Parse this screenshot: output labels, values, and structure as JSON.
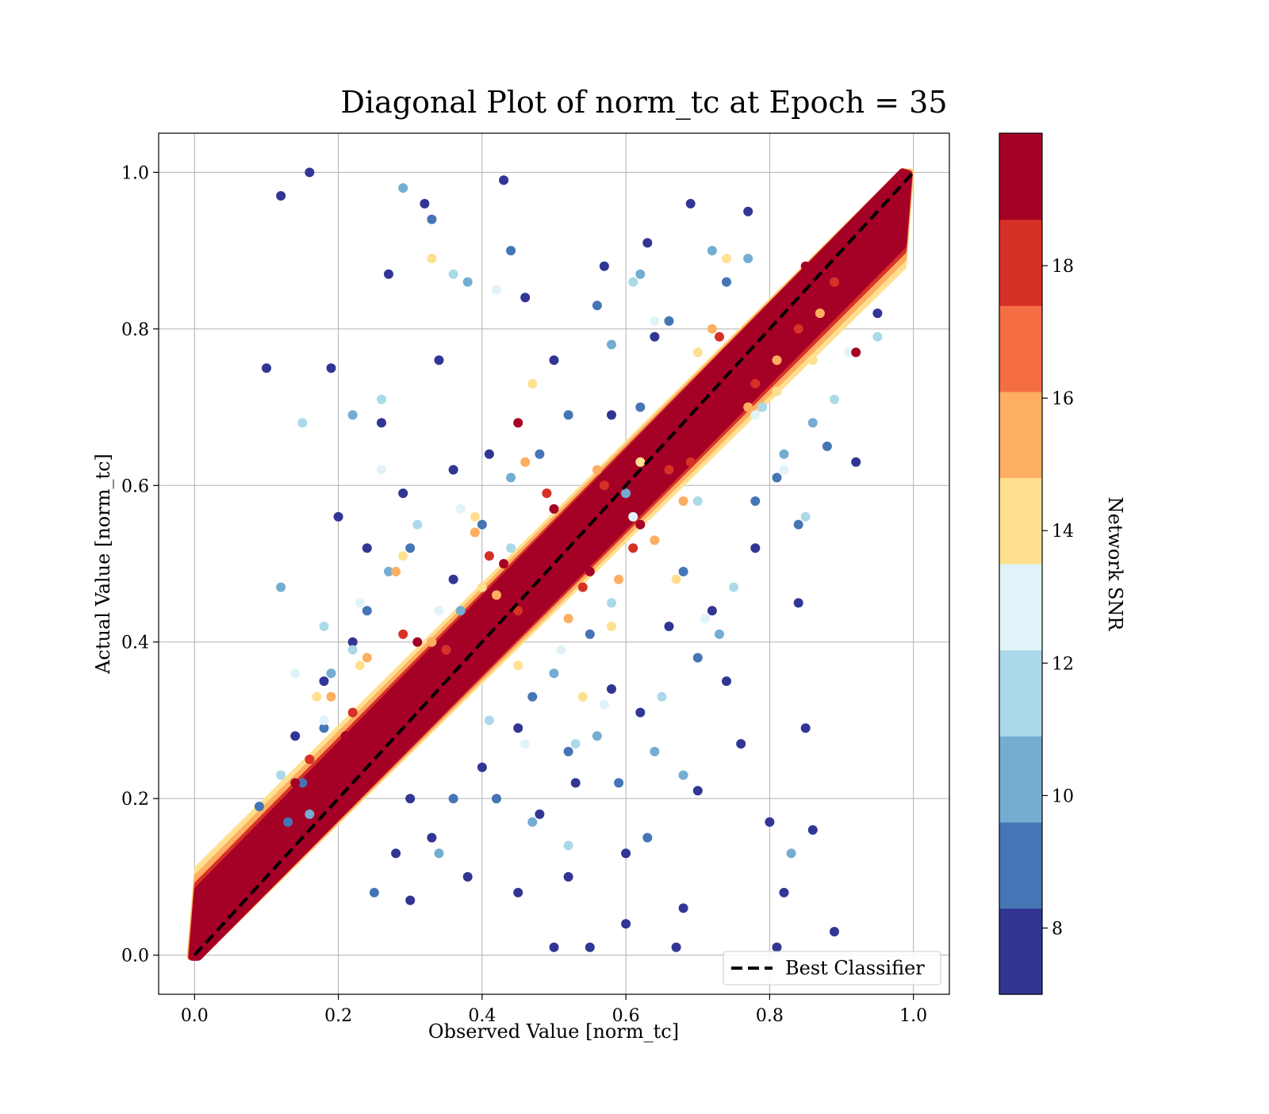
{
  "chart_data": {
    "type": "scatter",
    "title": "Diagonal Plot of norm_tc at Epoch = 35",
    "xlabel": "Observed Value [norm_tc]",
    "ylabel": "Actual Value [norm_tc]",
    "xlim": [
      -0.05,
      1.05
    ],
    "ylim": [
      -0.05,
      1.05
    ],
    "xticks": [
      "0.0",
      "0.2",
      "0.4",
      "0.6",
      "0.8",
      "1.0"
    ],
    "yticks": [
      "0.0",
      "0.2",
      "0.4",
      "0.6",
      "0.8",
      "1.0"
    ],
    "xtick_values": [
      0.0,
      0.2,
      0.4,
      0.6,
      0.8,
      1.0
    ],
    "ytick_values": [
      0.0,
      0.2,
      0.4,
      0.6,
      0.8,
      1.0
    ],
    "grid": true,
    "reference_line": {
      "label": "Best Classifier",
      "style": "dashed",
      "color": "#000000",
      "x": [
        0.0,
        1.0
      ],
      "y": [
        0.0,
        1.0
      ]
    },
    "legend": {
      "placement": "lower-right",
      "entries": [
        "Best Classifier"
      ]
    },
    "colorbar": {
      "label": "Network SNR",
      "range": [
        7,
        20
      ],
      "tick_values": [
        8,
        10,
        12,
        14,
        16,
        18
      ],
      "ticks": [
        "8",
        "10",
        "12",
        "14",
        "16",
        "18"
      ],
      "colors": [
        "#313695",
        "#4575b4",
        "#74add1",
        "#abd9e9",
        "#e0f3f8",
        "#fee090",
        "#fdae61",
        "#f46d43",
        "#d73027",
        "#a50026"
      ]
    },
    "series": [
      {
        "snr": 20,
        "points": [
          [
            0.1,
            0.14
          ],
          [
            0.25,
            0.29
          ],
          [
            0.4,
            0.38
          ],
          [
            0.55,
            0.56
          ],
          [
            0.7,
            0.67
          ],
          [
            0.85,
            0.88
          ]
        ]
      },
      {
        "snr": 7.5,
        "points": [
          [
            0.16,
            1.0
          ],
          [
            0.12,
            0.97
          ],
          [
            0.1,
            0.75
          ],
          [
            0.19,
            0.75
          ],
          [
            0.43,
            0.99
          ],
          [
            0.81,
            0.01
          ],
          [
            0.8,
            0.17
          ],
          [
            0.85,
            0.29
          ],
          [
            0.84,
            0.45
          ],
          [
            0.89,
            0.03
          ],
          [
            0.67,
            0.01
          ],
          [
            0.6,
            0.04
          ],
          [
            0.55,
            0.01
          ],
          [
            0.27,
            0.87
          ],
          [
            0.32,
            0.96
          ],
          [
            0.5,
            0.01
          ],
          [
            0.2,
            0.56
          ],
          [
            0.58,
            0.34
          ],
          [
            0.76,
            0.27
          ],
          [
            0.7,
            0.21
          ],
          [
            0.34,
            0.76
          ],
          [
            0.3,
            0.07
          ],
          [
            0.45,
            0.08
          ],
          [
            0.52,
            0.1
          ],
          [
            0.6,
            0.13
          ],
          [
            0.41,
            0.64
          ],
          [
            0.36,
            0.48
          ],
          [
            0.26,
            0.68
          ],
          [
            0.24,
            0.52
          ],
          [
            0.22,
            0.4
          ],
          [
            0.18,
            0.35
          ],
          [
            0.66,
            0.42
          ],
          [
            0.72,
            0.44
          ],
          [
            0.78,
            0.52
          ],
          [
            0.63,
            0.91
          ],
          [
            0.57,
            0.88
          ],
          [
            0.69,
            0.96
          ],
          [
            0.77,
            0.95
          ],
          [
            0.5,
            0.76
          ],
          [
            0.46,
            0.84
          ],
          [
            0.14,
            0.28
          ],
          [
            0.3,
            0.2
          ],
          [
            0.4,
            0.24
          ],
          [
            0.48,
            0.18
          ],
          [
            0.38,
            0.1
          ],
          [
            0.62,
            0.31
          ],
          [
            0.74,
            0.35
          ],
          [
            0.82,
            0.08
          ],
          [
            0.68,
            0.06
          ],
          [
            0.28,
            0.13
          ],
          [
            0.33,
            0.15
          ],
          [
            0.53,
            0.22
          ],
          [
            0.45,
            0.29
          ],
          [
            0.86,
            0.16
          ],
          [
            0.92,
            0.63
          ],
          [
            0.95,
            0.82
          ],
          [
            0.36,
            0.62
          ],
          [
            0.29,
            0.59
          ],
          [
            0.58,
            0.69
          ],
          [
            0.64,
            0.79
          ]
        ]
      },
      {
        "snr": 9,
        "points": [
          [
            0.33,
            0.94
          ],
          [
            0.44,
            0.9
          ],
          [
            0.56,
            0.83
          ],
          [
            0.3,
            0.52
          ],
          [
            0.24,
            0.44
          ],
          [
            0.52,
            0.26
          ],
          [
            0.59,
            0.22
          ],
          [
            0.63,
            0.15
          ],
          [
            0.7,
            0.38
          ],
          [
            0.42,
            0.2
          ],
          [
            0.18,
            0.29
          ],
          [
            0.15,
            0.22
          ],
          [
            0.84,
            0.55
          ],
          [
            0.88,
            0.65
          ],
          [
            0.62,
            0.7
          ],
          [
            0.48,
            0.64
          ],
          [
            0.35,
            0.39
          ],
          [
            0.55,
            0.41
          ],
          [
            0.68,
            0.49
          ],
          [
            0.78,
            0.58
          ],
          [
            0.25,
            0.08
          ],
          [
            0.09,
            0.19
          ],
          [
            0.74,
            0.86
          ],
          [
            0.66,
            0.81
          ],
          [
            0.36,
            0.2
          ],
          [
            0.47,
            0.33
          ],
          [
            0.13,
            0.17
          ],
          [
            0.52,
            0.69
          ],
          [
            0.81,
            0.61
          ],
          [
            0.4,
            0.55
          ]
        ]
      },
      {
        "snr": 10.5,
        "points": [
          [
            0.29,
            0.98
          ],
          [
            0.62,
            0.87
          ],
          [
            0.38,
            0.86
          ],
          [
            0.22,
            0.69
          ],
          [
            0.56,
            0.28
          ],
          [
            0.64,
            0.26
          ],
          [
            0.73,
            0.41
          ],
          [
            0.82,
            0.64
          ],
          [
            0.27,
            0.49
          ],
          [
            0.12,
            0.47
          ],
          [
            0.68,
            0.23
          ],
          [
            0.47,
            0.17
          ],
          [
            0.34,
            0.13
          ],
          [
            0.77,
            0.89
          ],
          [
            0.58,
            0.78
          ],
          [
            0.83,
            0.13
          ],
          [
            0.19,
            0.36
          ],
          [
            0.44,
            0.61
          ],
          [
            0.5,
            0.36
          ],
          [
            0.16,
            0.18
          ],
          [
            0.6,
            0.59
          ],
          [
            0.86,
            0.68
          ],
          [
            0.72,
            0.9
          ],
          [
            0.37,
            0.44
          ]
        ]
      },
      {
        "snr": 11.5,
        "points": [
          [
            0.15,
            0.68
          ],
          [
            0.36,
            0.87
          ],
          [
            0.61,
            0.86
          ],
          [
            0.85,
            0.56
          ],
          [
            0.26,
            0.71
          ],
          [
            0.18,
            0.42
          ],
          [
            0.52,
            0.14
          ],
          [
            0.75,
            0.47
          ],
          [
            0.53,
            0.27
          ],
          [
            0.65,
            0.33
          ],
          [
            0.44,
            0.52
          ],
          [
            0.31,
            0.55
          ],
          [
            0.7,
            0.58
          ],
          [
            0.79,
            0.7
          ],
          [
            0.95,
            0.79
          ],
          [
            0.12,
            0.23
          ],
          [
            0.41,
            0.3
          ],
          [
            0.58,
            0.45
          ],
          [
            0.89,
            0.71
          ],
          [
            0.22,
            0.39
          ]
        ]
      },
      {
        "snr": 13,
        "points": [
          [
            0.26,
            0.62
          ],
          [
            0.14,
            0.36
          ],
          [
            0.42,
            0.85
          ],
          [
            0.34,
            0.44
          ],
          [
            0.57,
            0.32
          ],
          [
            0.71,
            0.43
          ],
          [
            0.82,
            0.62
          ],
          [
            0.64,
            0.81
          ],
          [
            0.23,
            0.45
          ],
          [
            0.46,
            0.27
          ],
          [
            0.61,
            0.56
          ],
          [
            0.78,
            0.69
          ],
          [
            0.37,
            0.57
          ],
          [
            0.51,
            0.39
          ],
          [
            0.91,
            0.77
          ],
          [
            0.18,
            0.3
          ]
        ]
      },
      {
        "snr": 14.5,
        "points": [
          [
            0.33,
            0.89
          ],
          [
            0.47,
            0.73
          ],
          [
            0.23,
            0.37
          ],
          [
            0.54,
            0.33
          ],
          [
            0.67,
            0.48
          ],
          [
            0.81,
            0.72
          ],
          [
            0.39,
            0.56
          ],
          [
            0.62,
            0.63
          ],
          [
            0.74,
            0.89
          ],
          [
            0.29,
            0.51
          ],
          [
            0.45,
            0.37
          ],
          [
            0.86,
            0.76
          ],
          [
            0.58,
            0.42
          ],
          [
            0.17,
            0.33
          ],
          [
            0.7,
            0.77
          ],
          [
            0.4,
            0.47
          ]
        ]
      },
      {
        "snr": 16,
        "points": [
          [
            0.28,
            0.49
          ],
          [
            0.39,
            0.54
          ],
          [
            0.52,
            0.43
          ],
          [
            0.64,
            0.53
          ],
          [
            0.77,
            0.7
          ],
          [
            0.87,
            0.82
          ],
          [
            0.19,
            0.33
          ],
          [
            0.46,
            0.63
          ],
          [
            0.59,
            0.48
          ],
          [
            0.72,
            0.8
          ],
          [
            0.33,
            0.4
          ],
          [
            0.81,
            0.76
          ],
          [
            0.24,
            0.38
          ],
          [
            0.56,
            0.62
          ],
          [
            0.68,
            0.58
          ],
          [
            0.42,
            0.46
          ]
        ]
      },
      {
        "snr": 17.5,
        "points": [
          [
            0.29,
            0.41
          ],
          [
            0.41,
            0.51
          ],
          [
            0.54,
            0.47
          ],
          [
            0.66,
            0.62
          ],
          [
            0.78,
            0.73
          ],
          [
            0.89,
            0.86
          ],
          [
            0.22,
            0.31
          ],
          [
            0.49,
            0.59
          ],
          [
            0.61,
            0.52
          ],
          [
            0.73,
            0.79
          ],
          [
            0.35,
            0.39
          ],
          [
            0.84,
            0.8
          ],
          [
            0.16,
            0.25
          ],
          [
            0.57,
            0.6
          ],
          [
            0.69,
            0.63
          ],
          [
            0.45,
            0.44
          ]
        ]
      },
      {
        "snr": 19,
        "points": [
          [
            0.31,
            0.4
          ],
          [
            0.43,
            0.5
          ],
          [
            0.55,
            0.49
          ],
          [
            0.67,
            0.64
          ],
          [
            0.79,
            0.74
          ],
          [
            0.9,
            0.88
          ],
          [
            0.21,
            0.28
          ],
          [
            0.5,
            0.57
          ],
          [
            0.62,
            0.55
          ],
          [
            0.74,
            0.77
          ],
          [
            0.36,
            0.38
          ],
          [
            0.85,
            0.81
          ],
          [
            0.14,
            0.22
          ],
          [
            0.58,
            0.59
          ],
          [
            0.7,
            0.65
          ],
          [
            0.46,
            0.45
          ],
          [
            0.45,
            0.68
          ],
          [
            0.92,
            0.77
          ]
        ]
      }
    ]
  }
}
